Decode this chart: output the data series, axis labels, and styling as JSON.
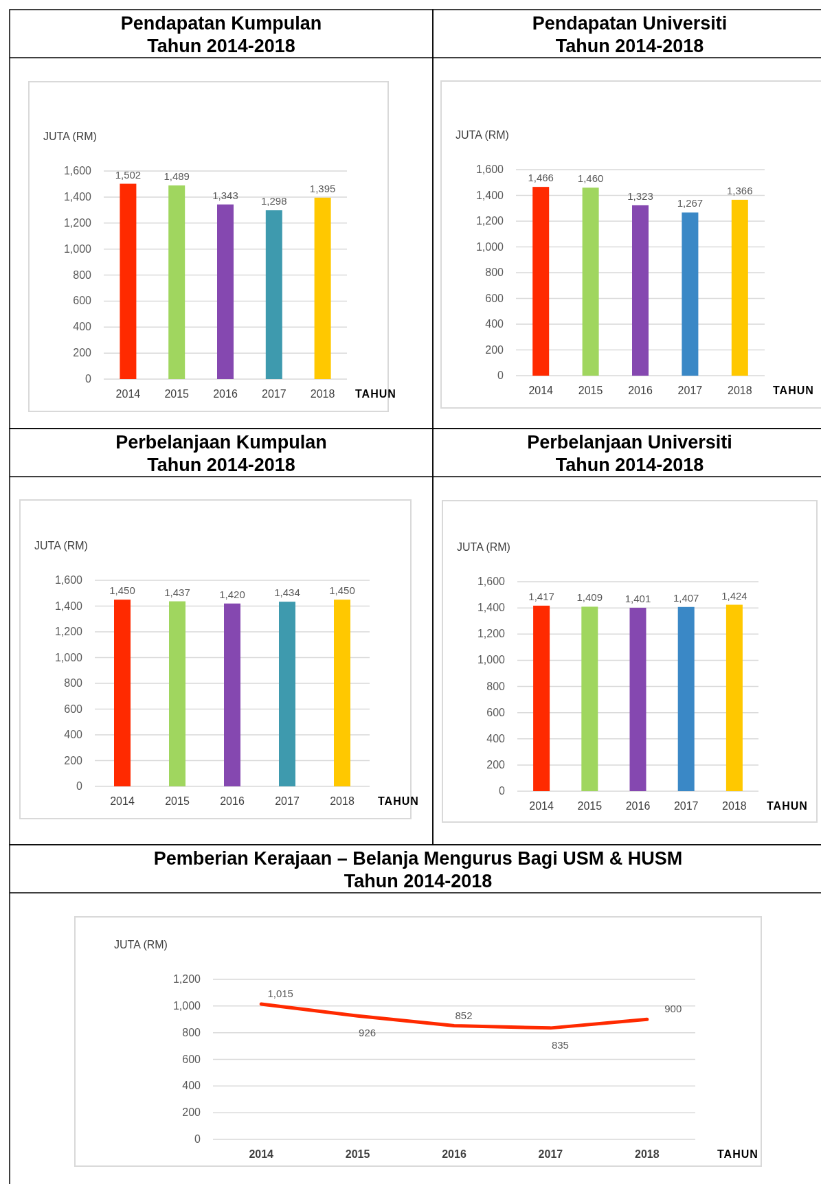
{
  "chart_data": [
    {
      "type": "bar",
      "title": "Pendapatan Kumpulan",
      "subtitle": "Tahun 2014-2018",
      "ylabel": "JUTA (RM)",
      "xlabel": "TAHUN",
      "categories": [
        "2014",
        "2015",
        "2016",
        "2017",
        "2018"
      ],
      "values": [
        1502,
        1489,
        1343,
        1298,
        1395
      ],
      "value_labels": [
        "1,502",
        "1,489",
        "1,343",
        "1,298",
        "1,395"
      ],
      "colors": [
        "#ff2a00",
        "#a0d65f",
        "#8548b0",
        "#3e9aae",
        "#ffc800"
      ],
      "ylim": [
        0,
        1600
      ],
      "yticks": [
        0,
        200,
        400,
        600,
        800,
        {
          "value": 1000,
          "label": "1,000"
        },
        {
          "value": 1200,
          "label": "1,200"
        },
        {
          "value": 1400,
          "label": "1,400"
        },
        {
          "value": 1600,
          "label": "1,600"
        }
      ],
      "grid": "y"
    },
    {
      "type": "bar",
      "title": "Pendapatan Universiti",
      "subtitle": "Tahun 2014-2018",
      "ylabel": "JUTA (RM)",
      "xlabel": "TAHUN",
      "categories": [
        "2014",
        "2015",
        "2016",
        "2017",
        "2018"
      ],
      "values": [
        1466,
        1460,
        1323,
        1267,
        1366
      ],
      "value_labels": [
        "1,466",
        "1,460",
        "1,323",
        "1,267",
        "1,366"
      ],
      "colors": [
        "#ff2a00",
        "#a0d65f",
        "#8548b0",
        "#3a88c6",
        "#ffc800"
      ],
      "ylim": [
        0,
        1600
      ],
      "yticks": [
        0,
        200,
        400,
        600,
        800,
        {
          "value": 1000,
          "label": "1,000"
        },
        {
          "value": 1200,
          "label": "1,200"
        },
        {
          "value": 1400,
          "label": "1,400"
        },
        {
          "value": 1600,
          "label": "1,600"
        }
      ],
      "grid": "y"
    },
    {
      "type": "bar",
      "title": "Perbelanjaan Kumpulan",
      "subtitle": "Tahun 2014-2018",
      "ylabel": "JUTA (RM)",
      "xlabel": "TAHUN",
      "categories": [
        "2014",
        "2015",
        "2016",
        "2017",
        "2018"
      ],
      "values": [
        1450,
        1437,
        1420,
        1434,
        1450
      ],
      "value_labels": [
        "1,450",
        "1,437",
        "1,420",
        "1,434",
        "1,450"
      ],
      "colors": [
        "#ff2a00",
        "#a0d65f",
        "#8548b0",
        "#3e9aae",
        "#ffc800"
      ],
      "ylim": [
        0,
        1600
      ],
      "yticks": [
        0,
        200,
        400,
        600,
        800,
        {
          "value": 1000,
          "label": "1,000"
        },
        {
          "value": 1200,
          "label": "1,200"
        },
        {
          "value": 1400,
          "label": "1,400"
        },
        {
          "value": 1600,
          "label": "1,600"
        }
      ],
      "grid": "y"
    },
    {
      "type": "bar",
      "title": "Perbelanjaan Universiti",
      "subtitle": "Tahun 2014-2018",
      "ylabel": "JUTA (RM)",
      "xlabel": "TAHUN",
      "categories": [
        "2014",
        "2015",
        "2016",
        "2017",
        "2018"
      ],
      "values": [
        1417,
        1409,
        1401,
        1407,
        1424
      ],
      "value_labels": [
        "1,417",
        "1,409",
        "1,401",
        "1,407",
        "1,424"
      ],
      "colors": [
        "#ff2a00",
        "#a0d65f",
        "#8548b0",
        "#3a88c6",
        "#ffc800"
      ],
      "ylim": [
        0,
        1600
      ],
      "yticks": [
        0,
        200,
        400,
        600,
        800,
        {
          "value": 1000,
          "label": "1,000"
        },
        {
          "value": 1200,
          "label": "1,200"
        },
        {
          "value": 1400,
          "label": "1,400"
        },
        {
          "value": 1600,
          "label": "1,600"
        }
      ],
      "grid": "y"
    },
    {
      "type": "line",
      "title": "Pemberian Kerajaan – Belanja Mengurus Bagi USM & HUSM",
      "subtitle": "Tahun 2014-2018",
      "ylabel": "JUTA (RM)",
      "xlabel": "TAHUN",
      "categories": [
        "2014",
        "2015",
        "2016",
        "2017",
        "2018"
      ],
      "values": [
        1015,
        926,
        852,
        835,
        900
      ],
      "value_labels": [
        "1,015",
        "926",
        "852",
        "835",
        "900"
      ],
      "color": "#ff2a00",
      "ylim": [
        0,
        1200
      ],
      "yticks": [
        0,
        200,
        400,
        600,
        800,
        {
          "value": 1000,
          "label": "1,000"
        },
        {
          "value": 1200,
          "label": "1,200"
        }
      ],
      "grid": "y",
      "marker": "none"
    }
  ]
}
